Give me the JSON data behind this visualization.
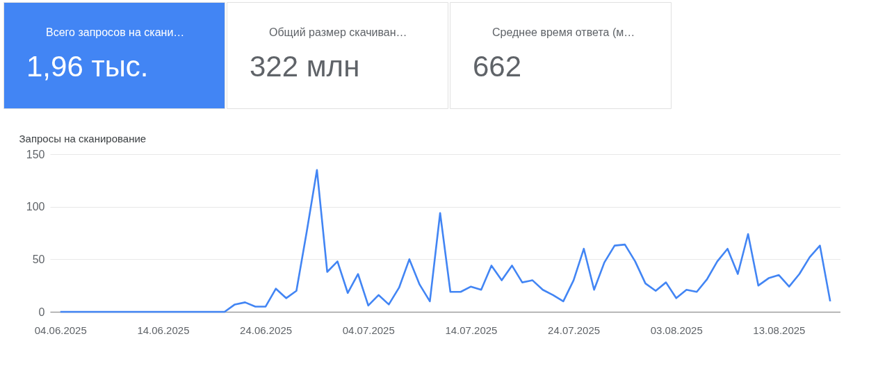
{
  "chart_data": [
    {
      "type": "other",
      "categories": [
        "Всего запросов на скани…",
        "Общий размер скачиван…",
        "Среднее время ответа (м…"
      ],
      "value_labels": [
        "1,96 тыс.",
        "322 млн",
        "662"
      ],
      "colors": [
        "#4285f4",
        "#ffffff",
        "#ffffff"
      ]
    },
    {
      "type": "line",
      "ylabel": "Запросы на сканирование",
      "x": [
        "2025-06-04",
        "2025-06-05",
        "2025-06-06",
        "2025-06-07",
        "2025-06-08",
        "2025-06-09",
        "2025-06-10",
        "2025-06-11",
        "2025-06-12",
        "2025-06-13",
        "2025-06-14",
        "2025-06-15",
        "2025-06-16",
        "2025-06-17",
        "2025-06-18",
        "2025-06-19",
        "2025-06-20",
        "2025-06-21",
        "2025-06-22",
        "2025-06-23",
        "2025-06-24",
        "2025-06-25",
        "2025-06-26",
        "2025-06-27",
        "2025-06-28",
        "2025-06-29",
        "2025-06-30",
        "2025-07-01",
        "2025-07-02",
        "2025-07-03",
        "2025-07-04",
        "2025-07-05",
        "2025-07-06",
        "2025-07-07",
        "2025-07-08",
        "2025-07-09",
        "2025-07-10",
        "2025-07-11",
        "2025-07-12",
        "2025-07-13",
        "2025-07-14",
        "2025-07-15",
        "2025-07-16",
        "2025-07-17",
        "2025-07-18",
        "2025-07-19",
        "2025-07-20",
        "2025-07-21",
        "2025-07-22",
        "2025-07-23",
        "2025-07-24",
        "2025-07-25",
        "2025-07-26",
        "2025-07-27",
        "2025-07-28",
        "2025-07-29",
        "2025-07-30",
        "2025-07-31",
        "2025-08-01",
        "2025-08-02",
        "2025-08-03",
        "2025-08-04",
        "2025-08-05",
        "2025-08-06",
        "2025-08-07",
        "2025-08-08",
        "2025-08-09",
        "2025-08-10",
        "2025-08-11",
        "2025-08-12",
        "2025-08-13",
        "2025-08-14",
        "2025-08-15",
        "2025-08-16",
        "2025-08-17",
        "2025-08-18"
      ],
      "series": [
        {
          "color": "#4285f4",
          "values": [
            0,
            0,
            0,
            0,
            0,
            0,
            0,
            0,
            0,
            0,
            0,
            0,
            0,
            0,
            0,
            0,
            0,
            7,
            9,
            5,
            5,
            22,
            13,
            20,
            76,
            135,
            38,
            48,
            18,
            36,
            6,
            16,
            7,
            23,
            50,
            26,
            10,
            94,
            19,
            19,
            24,
            21,
            44,
            30,
            44,
            28,
            30,
            21,
            16,
            10,
            30,
            60,
            21,
            47,
            63,
            64,
            48,
            27,
            20,
            28,
            13,
            21,
            19,
            31,
            48,
            60,
            36,
            74,
            25,
            32,
            35,
            24,
            36,
            52,
            63,
            10
          ]
        }
      ],
      "xlim": [
        "2025-06-03",
        "2025-08-19"
      ],
      "xticks": [
        {
          "value": "2025-06-04",
          "label": "04.06.2025"
        },
        {
          "value": "2025-06-14",
          "label": "14.06.2025"
        },
        {
          "value": "2025-06-24",
          "label": "24.06.2025"
        },
        {
          "value": "2025-07-04",
          "label": "04.07.2025"
        },
        {
          "value": "2025-07-14",
          "label": "14.07.2025"
        },
        {
          "value": "2025-07-24",
          "label": "24.07.2025"
        },
        {
          "value": "2025-08-03",
          "label": "03.08.2025"
        },
        {
          "value": "2025-08-13",
          "label": "13.08.2025"
        }
      ],
      "ylim": [
        0,
        150
      ],
      "yticks": [
        0,
        50,
        100,
        150
      ],
      "grid": "y"
    }
  ]
}
